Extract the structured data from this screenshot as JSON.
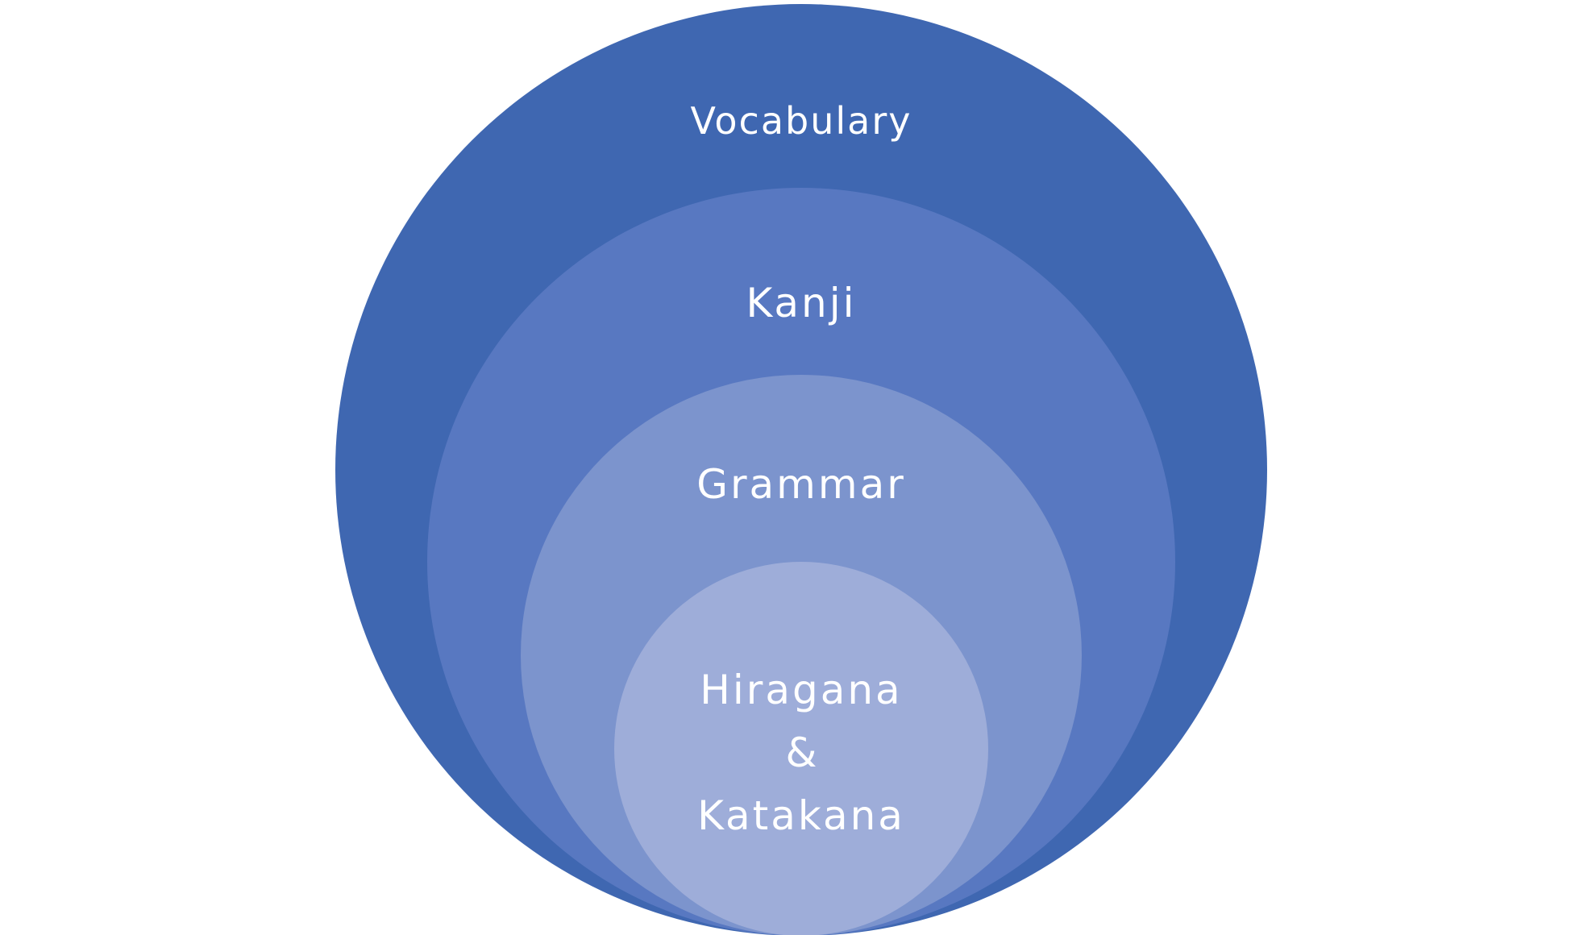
{
  "diagram": {
    "type": "nested-circles",
    "levels": [
      {
        "label": "Vocabulary",
        "color": "#3f67b1"
      },
      {
        "label": "Kanji",
        "color": "#5878c1"
      },
      {
        "label": "Grammar",
        "color": "#7c94cd"
      },
      {
        "label_lines": [
          "Hiragana",
          "&",
          "Katakana"
        ],
        "color": "#9eadd9"
      }
    ]
  }
}
